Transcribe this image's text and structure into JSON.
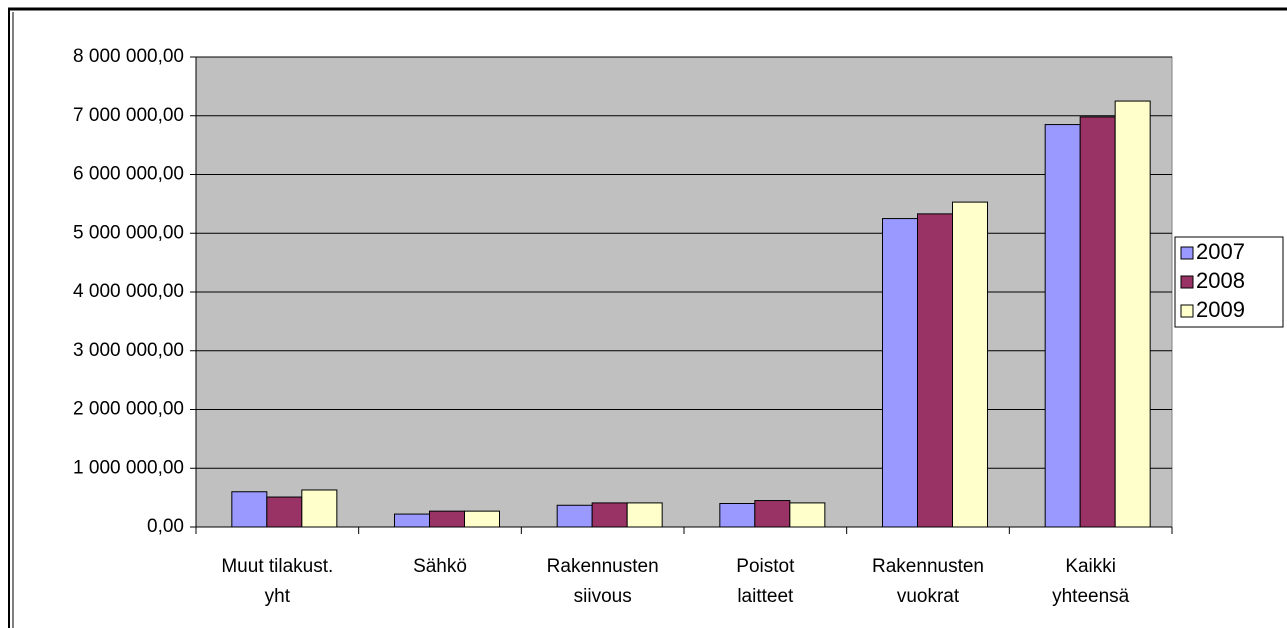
{
  "chart_data": {
    "type": "bar",
    "categories": [
      "Muut tilakust. yht",
      "Sähkö",
      "Rakennusten siivous",
      "Poistot laitteet",
      "Rakennusten vuokrat",
      "Kaikki yhteensä"
    ],
    "series": [
      {
        "name": "2007",
        "color": "#9999ff",
        "values": [
          600000,
          220000,
          370000,
          400000,
          5250000,
          6850000
        ]
      },
      {
        "name": "2008",
        "color": "#993366",
        "values": [
          510000,
          270000,
          410000,
          450000,
          5330000,
          6980000
        ]
      },
      {
        "name": "2009",
        "color": "#ffffcc",
        "values": [
          630000,
          270000,
          410000,
          410000,
          5530000,
          7250000
        ]
      }
    ],
    "ylim": [
      0,
      8000000
    ],
    "yticks": [
      {
        "value": 0,
        "label": "0,00"
      },
      {
        "value": 1000000,
        "label": "1 000 000,00"
      },
      {
        "value": 2000000,
        "label": "2 000 000,00"
      },
      {
        "value": 3000000,
        "label": "3 000 000,00"
      },
      {
        "value": 4000000,
        "label": "4 000 000,00"
      },
      {
        "value": 5000000,
        "label": "5 000 000,00"
      },
      {
        "value": 6000000,
        "label": "6 000 000,00"
      },
      {
        "value": 7000000,
        "label": "7 000 000,00"
      },
      {
        "value": 8000000,
        "label": "8 000 000,00"
      }
    ],
    "grid": true,
    "plot_background": "#c0c0c0",
    "legend": "right"
  }
}
